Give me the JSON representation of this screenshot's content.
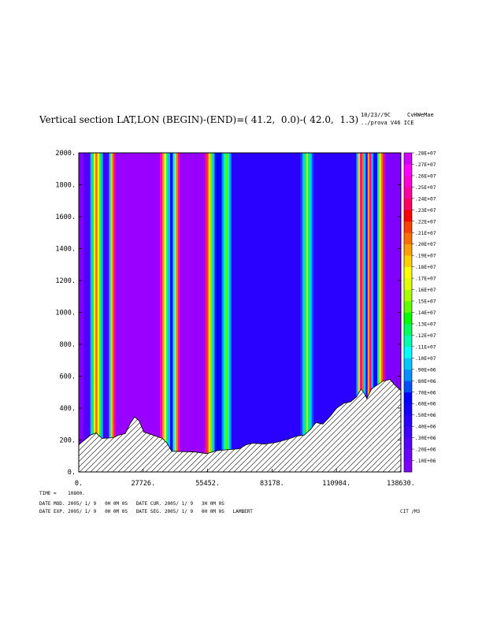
{
  "header": {
    "title": "Vertical section LAT,LON (BEGIN)-(END)=( 41.2,  0.0)-( 42.0,  1.3)",
    "meta_line1": "10/23//9C     CvHWeMae",
    "meta_line2": "../prova V46 ICE"
  },
  "footer": {
    "time": "TIME =    10800.",
    "line1": "DATE MOD. 2005/ 1/ 9   0H 0M 0S   DATE CUR. 2005/ 1/ 9   3H 0M 0S",
    "line2": "DATE EXP. 2005/ 1/ 9   0H 0M 0S   DATE SEG. 2005/ 1/ 9   0H 0M 0S   LAMBERT",
    "code": "CIT /M3"
  },
  "chart_data": {
    "type": "heatmap",
    "xlim": [
      0,
      138630
    ],
    "ylim": [
      0,
      2000
    ],
    "x_tick_labels": [
      "0.",
      "27726.",
      "55452.",
      "83178.",
      "110904.",
      "138630."
    ],
    "y_tick_labels": [
      "2000.",
      "1800.",
      "1600.",
      "1400.",
      "1200.",
      "1000.",
      "800.",
      "600.",
      "400.",
      "200.",
      "0."
    ],
    "colorbar_labels": [
      ".10E+06",
      ".20E+06",
      ".30E+06",
      ".40E+06",
      ".50E+06",
      ".60E+06",
      ".70E+06",
      ".80E+06",
      ".90E+06",
      ".10E+07",
      ".11E+07",
      ".12E+07",
      ".13E+07",
      ".14E+07",
      ".15E+07",
      ".16E+07",
      ".17E+07",
      ".18E+07",
      ".19E+07",
      ".20E+07",
      ".21E+07",
      ".22E+07",
      ".23E+07",
      ".24E+07",
      ".25E+07",
      ".26E+07",
      ".27E+07",
      ".28E+07"
    ],
    "colorbar_colors": [
      "#8000ff",
      "#6a00ff",
      "#5500ff",
      "#3f00ff",
      "#2a00ff",
      "#1400ff",
      "#0000ff",
      "#0050ff",
      "#0090ff",
      "#00c8ff",
      "#00ffff",
      "#00ffb0",
      "#00ff60",
      "#00ff00",
      "#60ff00",
      "#a8ff00",
      "#e0ff00",
      "#ffff00",
      "#ffd000",
      "#ffa000",
      "#ff7000",
      "#ff4000",
      "#ff0000",
      "#ff0060",
      "#ff00a0",
      "#ff00d8",
      "#ff00ff",
      "#d000ff"
    ],
    "background_color": "#9900ff",
    "columns": [
      {
        "x0": 0,
        "x1": 2000,
        "color": "#8000ff"
      },
      {
        "x0": 2000,
        "x1": 5000,
        "color": "#5500ff"
      },
      {
        "x0": 5000,
        "x1": 5800,
        "color": "#00c8ff"
      },
      {
        "x0": 5800,
        "x1": 6500,
        "color": "#00ff60"
      },
      {
        "x0": 6500,
        "x1": 7200,
        "color": "#ffff00"
      },
      {
        "x0": 7200,
        "x1": 8000,
        "color": "#ff7000"
      },
      {
        "x0": 8000,
        "x1": 8800,
        "color": "#ffff00"
      },
      {
        "x0": 8800,
        "x1": 9600,
        "color": "#00ff60"
      },
      {
        "x0": 9600,
        "x1": 10400,
        "color": "#00c8ff"
      },
      {
        "x0": 10400,
        "x1": 13000,
        "color": "#3f00ff"
      },
      {
        "x0": 13000,
        "x1": 13700,
        "color": "#00c8ff"
      },
      {
        "x0": 13700,
        "x1": 14400,
        "color": "#a8ff00"
      },
      {
        "x0": 14400,
        "x1": 15100,
        "color": "#ff7000"
      },
      {
        "x0": 15100,
        "x1": 15800,
        "color": "#ff00a0"
      },
      {
        "x0": 35000,
        "x1": 36000,
        "color": "#ff00d8"
      },
      {
        "x0": 36000,
        "x1": 36800,
        "color": "#ffa000"
      },
      {
        "x0": 36800,
        "x1": 37600,
        "color": "#ffff00"
      },
      {
        "x0": 37600,
        "x1": 38400,
        "color": "#00ff60"
      },
      {
        "x0": 38400,
        "x1": 39300,
        "color": "#00c8ff"
      },
      {
        "x0": 39300,
        "x1": 40500,
        "color": "#1400ff"
      },
      {
        "x0": 40500,
        "x1": 41300,
        "color": "#00ffff"
      },
      {
        "x0": 41300,
        "x1": 42000,
        "color": "#a8ff00"
      },
      {
        "x0": 42000,
        "x1": 42800,
        "color": "#ff7000"
      },
      {
        "x0": 42800,
        "x1": 43500,
        "color": "#ff00a0"
      },
      {
        "x0": 54200,
        "x1": 55000,
        "color": "#ff00a0"
      },
      {
        "x0": 55000,
        "x1": 55800,
        "color": "#ff4000"
      },
      {
        "x0": 55800,
        "x1": 56600,
        "color": "#ffd000"
      },
      {
        "x0": 56600,
        "x1": 57500,
        "color": "#60ff00"
      },
      {
        "x0": 57500,
        "x1": 58500,
        "color": "#00c8ff"
      },
      {
        "x0": 58500,
        "x1": 61500,
        "color": "#0000ff"
      },
      {
        "x0": 61500,
        "x1": 62300,
        "color": "#0090ff"
      },
      {
        "x0": 62300,
        "x1": 63100,
        "color": "#00ffb0"
      },
      {
        "x0": 63100,
        "x1": 64000,
        "color": "#60ff00"
      },
      {
        "x0": 64000,
        "x1": 64900,
        "color": "#00ffb0"
      },
      {
        "x0": 64900,
        "x1": 65700,
        "color": "#0090ff"
      },
      {
        "x0": 65700,
        "x1": 95500,
        "color": "#2a00ff"
      },
      {
        "x0": 95500,
        "x1": 96300,
        "color": "#0050ff"
      },
      {
        "x0": 96300,
        "x1": 97100,
        "color": "#00c8ff"
      },
      {
        "x0": 97100,
        "x1": 97900,
        "color": "#00ff60"
      },
      {
        "x0": 97900,
        "x1": 98700,
        "color": "#a8ff00"
      },
      {
        "x0": 98700,
        "x1": 99500,
        "color": "#00ff60"
      },
      {
        "x0": 99500,
        "x1": 100300,
        "color": "#00c8ff"
      },
      {
        "x0": 100300,
        "x1": 101100,
        "color": "#0050ff"
      },
      {
        "x0": 101100,
        "x1": 119500,
        "color": "#2a00ff"
      },
      {
        "x0": 119500,
        "x1": 120300,
        "color": "#00c8ff"
      },
      {
        "x0": 120300,
        "x1": 121100,
        "color": "#ffd000"
      },
      {
        "x0": 121100,
        "x1": 121900,
        "color": "#ff00a0"
      },
      {
        "x0": 121900,
        "x1": 122700,
        "color": "#ff7000"
      },
      {
        "x0": 122700,
        "x1": 123500,
        "color": "#00c8ff"
      },
      {
        "x0": 123500,
        "x1": 124300,
        "color": "#2a00ff"
      },
      {
        "x0": 124300,
        "x1": 125100,
        "color": "#ffa000"
      },
      {
        "x0": 125100,
        "x1": 125900,
        "color": "#ff00a0"
      },
      {
        "x0": 125900,
        "x1": 126700,
        "color": "#00c8ff"
      },
      {
        "x0": 126700,
        "x1": 128500,
        "color": "#1400ff"
      },
      {
        "x0": 128500,
        "x1": 129300,
        "color": "#00ff60"
      },
      {
        "x0": 129300,
        "x1": 130100,
        "color": "#ffff00"
      },
      {
        "x0": 130100,
        "x1": 130900,
        "color": "#ff7000"
      },
      {
        "x0": 130900,
        "x1": 131700,
        "color": "#ff00a0"
      },
      {
        "x0": 131700,
        "x1": 138630,
        "color": "#8000ff"
      }
    ],
    "terrain": [
      [
        0,
        170
      ],
      [
        5000,
        230
      ],
      [
        7500,
        245
      ],
      [
        10000,
        210
      ],
      [
        15000,
        215
      ],
      [
        17000,
        230
      ],
      [
        20000,
        240
      ],
      [
        22000,
        300
      ],
      [
        24000,
        345
      ],
      [
        26000,
        320
      ],
      [
        28000,
        250
      ],
      [
        32000,
        230
      ],
      [
        36000,
        210
      ],
      [
        38000,
        180
      ],
      [
        40000,
        130
      ],
      [
        50000,
        125
      ],
      [
        55000,
        115
      ],
      [
        60000,
        135
      ],
      [
        65000,
        140
      ],
      [
        69000,
        145
      ],
      [
        72000,
        170
      ],
      [
        75000,
        180
      ],
      [
        80000,
        175
      ],
      [
        85000,
        185
      ],
      [
        90000,
        205
      ],
      [
        94000,
        225
      ],
      [
        97000,
        230
      ],
      [
        100000,
        270
      ],
      [
        102000,
        310
      ],
      [
        105000,
        300
      ],
      [
        108000,
        345
      ],
      [
        111000,
        400
      ],
      [
        114000,
        430
      ],
      [
        117000,
        440
      ],
      [
        119500,
        470
      ],
      [
        121500,
        520
      ],
      [
        123000,
        490
      ],
      [
        124000,
        460
      ],
      [
        126000,
        520
      ],
      [
        128000,
        540
      ],
      [
        131000,
        570
      ],
      [
        134000,
        580
      ],
      [
        136000,
        545
      ],
      [
        138630,
        510
      ]
    ]
  }
}
